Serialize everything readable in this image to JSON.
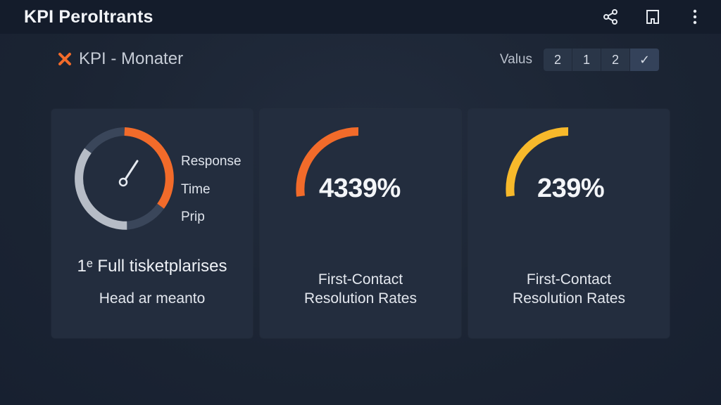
{
  "app": {
    "title": "KPI Peroltrants"
  },
  "header": {
    "icons": [
      "share-icon",
      "bookmark-icon",
      "more-vertical-icon"
    ]
  },
  "section": {
    "title": "KPI - Monater",
    "icon": "close-icon"
  },
  "values": {
    "label": "Valus",
    "options": [
      "2",
      "1",
      "2",
      "✓"
    ]
  },
  "colors": {
    "orange": "#f26b2a",
    "yellow": "#f7b92b",
    "gray": "#b6bcc6",
    "slate": "#3a465a"
  },
  "cards": [
    {
      "legend": [
        "Response",
        "Time",
        "Prip"
      ],
      "caption_primary": "1ᵉ Full tisketplarises",
      "caption_secondary": "Head ar meanto"
    },
    {
      "value": "4339%",
      "caption_line1": "First-Contact",
      "caption_line2": "Resolution Rates"
    },
    {
      "value": "239%",
      "caption_line1": "First-Contact",
      "caption_line2": "Resolution Rates"
    }
  ]
}
